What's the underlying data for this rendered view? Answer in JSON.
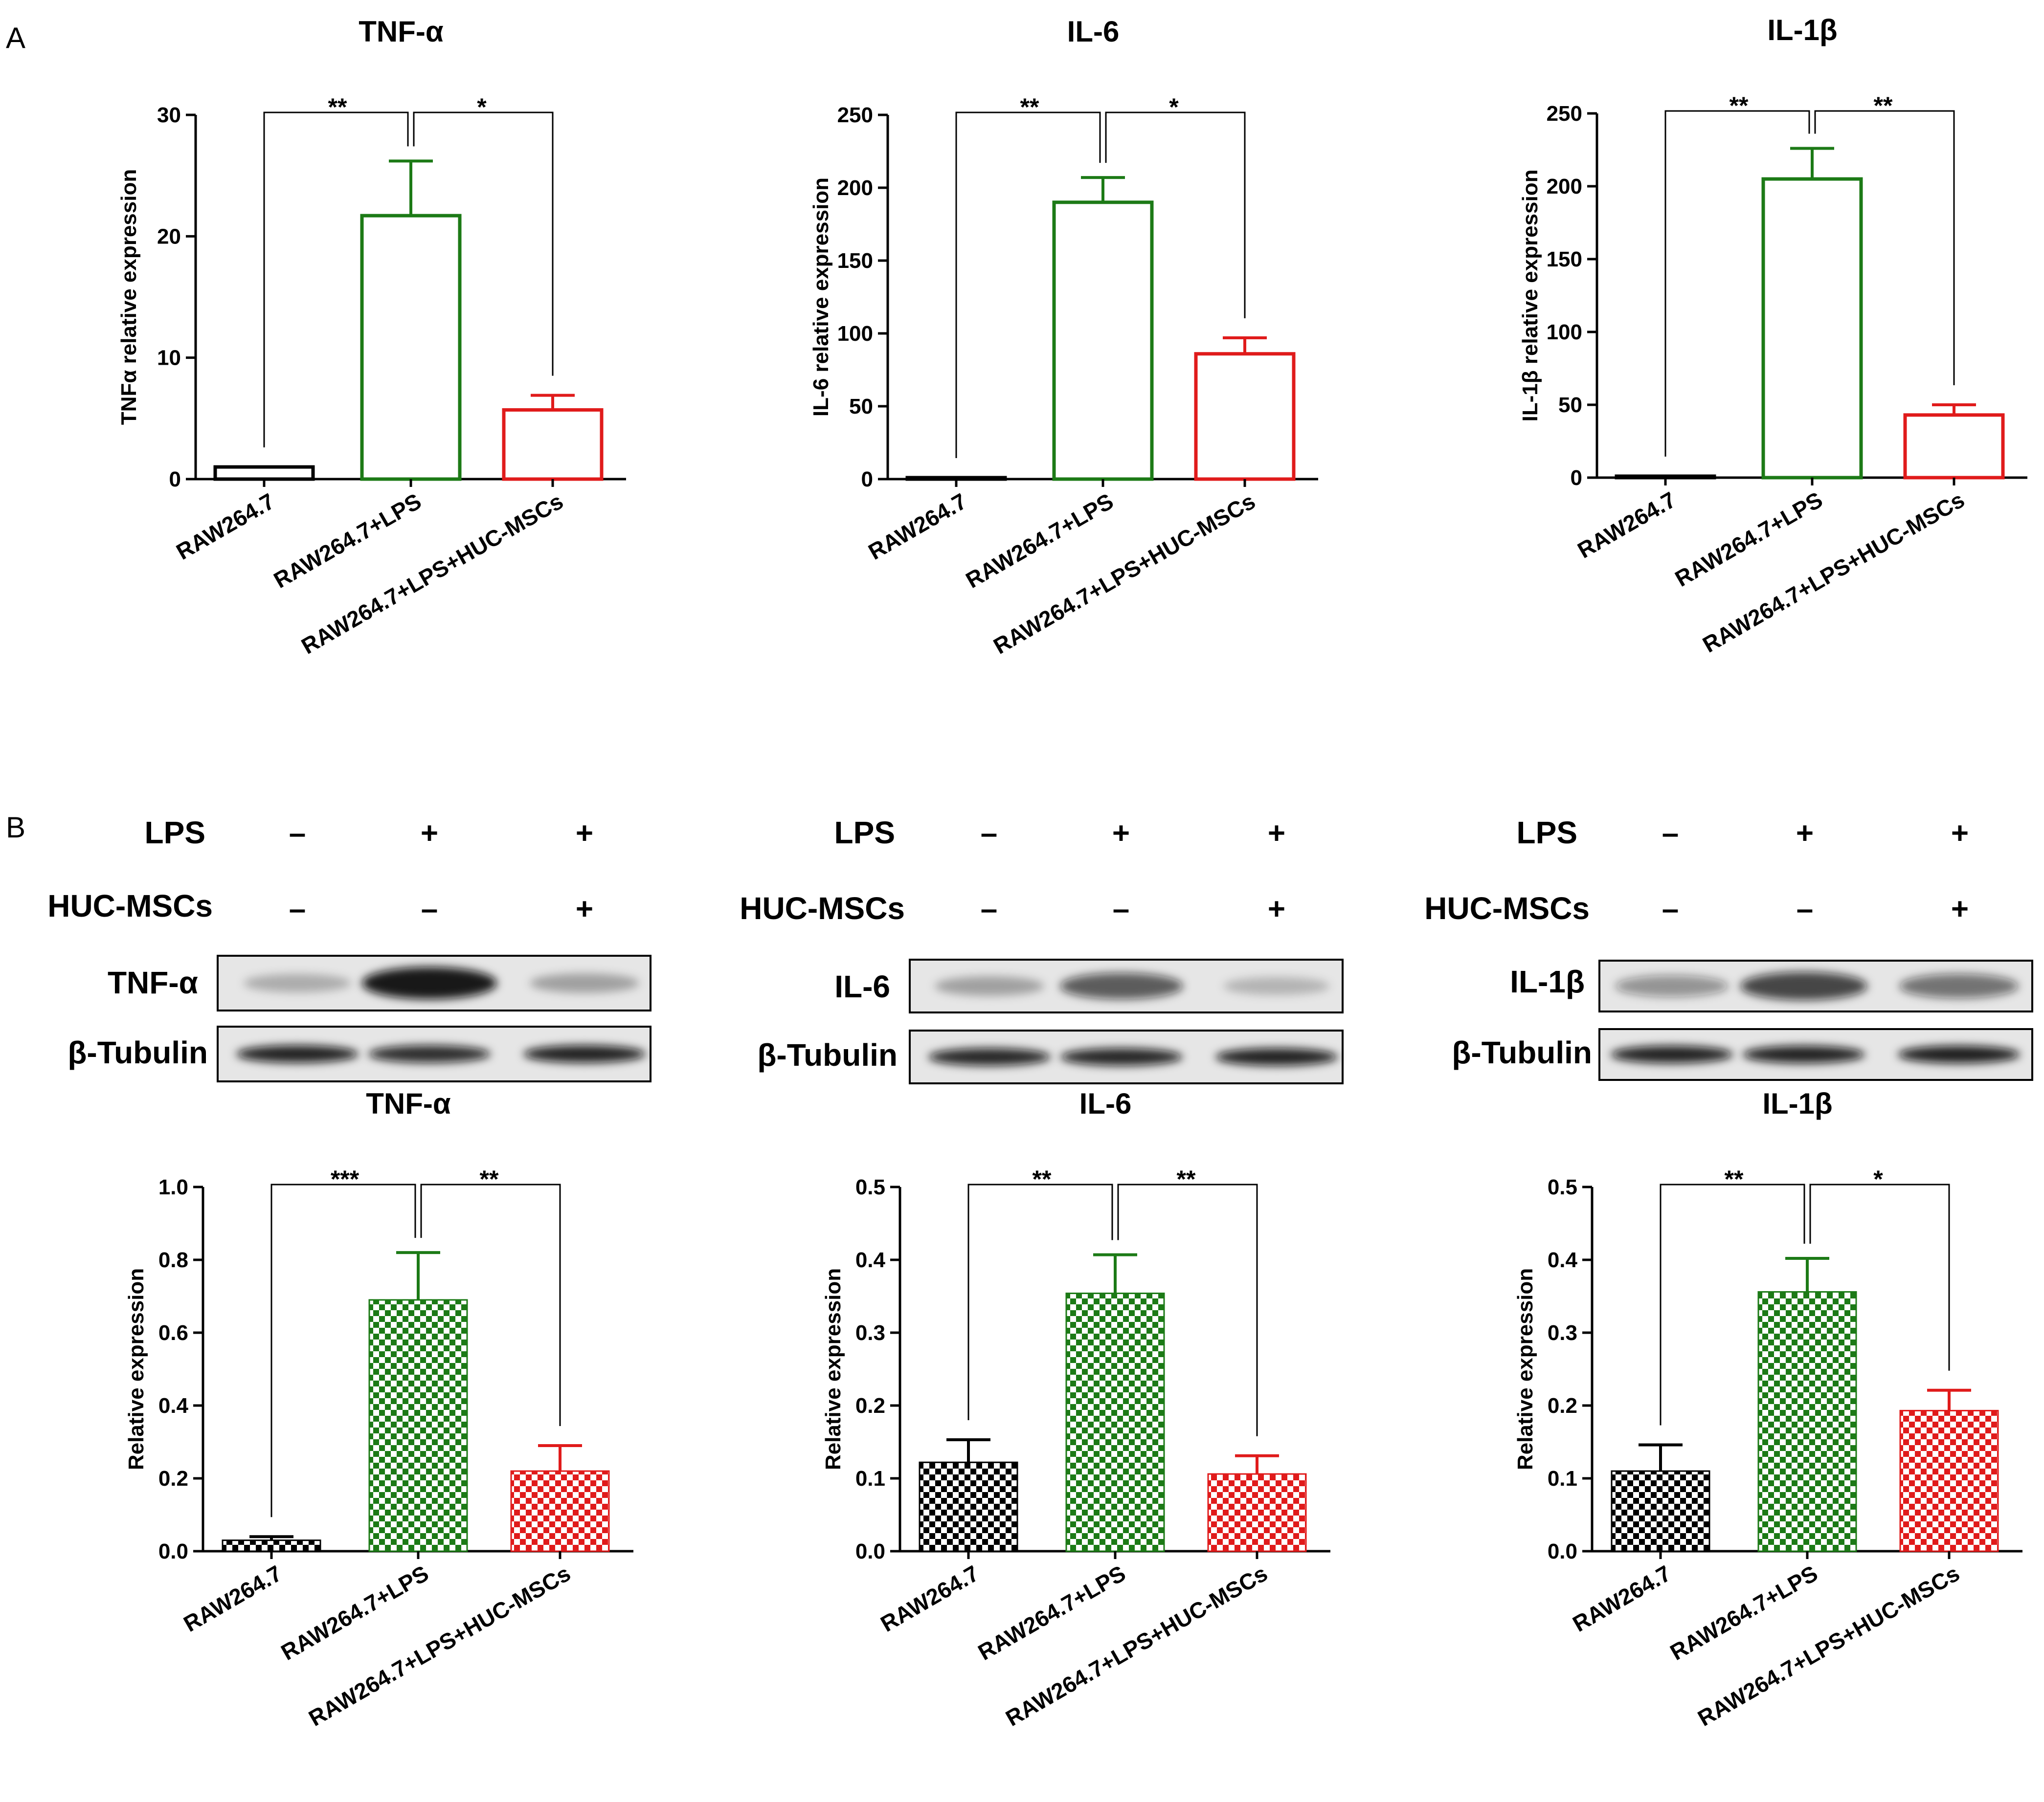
{
  "figure": {
    "panels": [
      "A",
      "B"
    ]
  },
  "colors": {
    "raw": "#000000",
    "lps": "#1c7a16",
    "huc": "#e01b1b",
    "axis": "#000000",
    "band_bg": "#e6e6e6",
    "band": "#111111"
  },
  "western_blot": {
    "row_labels": {
      "lps": "LPS",
      "huc": "HUC-MSCs"
    },
    "lps_signs": [
      "–",
      "+",
      "+"
    ],
    "huc_signs": [
      "–",
      "–",
      "+"
    ],
    "loading_label": "β-Tubulin",
    "targets": [
      "TNF-α",
      "IL-6",
      "IL-1β"
    ],
    "target_intensity": [
      [
        0.25,
        0.95,
        0.3
      ],
      [
        0.3,
        0.65,
        0.22
      ],
      [
        0.4,
        0.75,
        0.55
      ]
    ],
    "tubulin_intensity": [
      [
        0.9,
        0.85,
        0.9
      ],
      [
        0.88,
        0.88,
        0.9
      ],
      [
        0.9,
        0.9,
        0.92
      ]
    ]
  },
  "chart_data": [
    {
      "type": "bar",
      "panel": "A",
      "title": "TNF-α",
      "ylabel": "TNFα relative expression",
      "categories": [
        "RAW264.7",
        "RAW264.7+LPS",
        "RAW264.7+LPS+HUC-MSCs"
      ],
      "values": [
        1,
        21.7,
        5.7
      ],
      "errors": [
        0,
        4.5,
        1.2
      ],
      "ylim": [
        0,
        30
      ],
      "yticks": [
        0,
        10,
        20,
        30
      ],
      "ytick_labels": [
        "0",
        "10",
        "20",
        "30"
      ],
      "fill": "hollow",
      "significance": [
        "**",
        "*"
      ]
    },
    {
      "type": "bar",
      "panel": "A",
      "title": "IL-6",
      "ylabel": "IL-6 relative expression",
      "categories": [
        "RAW264.7",
        "RAW264.7+LPS",
        "RAW264.7+LPS+HUC-MSCs"
      ],
      "values": [
        1,
        190,
        86
      ],
      "errors": [
        0,
        17,
        11
      ],
      "ylim": [
        0,
        250
      ],
      "yticks": [
        0,
        50,
        100,
        150,
        200,
        250
      ],
      "ytick_labels": [
        "0",
        "50",
        "100",
        "150",
        "200",
        "250"
      ],
      "fill": "hollow",
      "significance": [
        "**",
        "*"
      ]
    },
    {
      "type": "bar",
      "panel": "A",
      "title": "IL-1β",
      "ylabel": "IL-1β relative expression",
      "categories": [
        "RAW264.7",
        "RAW264.7+LPS",
        "RAW264.7+LPS+HUC-MSCs"
      ],
      "values": [
        1,
        205,
        43
      ],
      "errors": [
        0,
        21,
        7
      ],
      "ylim": [
        0,
        250
      ],
      "yticks": [
        0,
        50,
        100,
        150,
        200,
        250
      ],
      "ytick_labels": [
        "0",
        "50",
        "100",
        "150",
        "200",
        "250"
      ],
      "fill": "hollow",
      "significance": [
        "**",
        "**"
      ]
    },
    {
      "type": "bar",
      "panel": "B",
      "title": "TNF-α",
      "ylabel": "Relative expression",
      "categories": [
        "RAW264.7",
        "RAW264.7+LPS",
        "RAW264.7+LPS+HUC-MSCs"
      ],
      "values": [
        0.03,
        0.69,
        0.22
      ],
      "errors": [
        0.01,
        0.13,
        0.07
      ],
      "ylim": [
        0,
        1.0
      ],
      "yticks": [
        0,
        0.2,
        0.4,
        0.6,
        0.8,
        1.0
      ],
      "ytick_labels": [
        "0.0",
        "0.2",
        "0.4",
        "0.6",
        "0.8",
        "1.0"
      ],
      "fill": "checkered",
      "significance": [
        "***",
        "**"
      ]
    },
    {
      "type": "bar",
      "panel": "B",
      "title": "IL-6",
      "ylabel": "Relative expression",
      "categories": [
        "RAW264.7",
        "RAW264.7+LPS",
        "RAW264.7+LPS+HUC-MSCs"
      ],
      "values": [
        0.122,
        0.354,
        0.106
      ],
      "errors": [
        0.031,
        0.053,
        0.025
      ],
      "ylim": [
        0,
        0.5
      ],
      "yticks": [
        0,
        0.1,
        0.2,
        0.3,
        0.4,
        0.5
      ],
      "ytick_labels": [
        "0.0",
        "0.1",
        "0.2",
        "0.3",
        "0.4",
        "0.5"
      ],
      "fill": "checkered",
      "significance": [
        "**",
        "**"
      ]
    },
    {
      "type": "bar",
      "panel": "B",
      "title": "IL-1β",
      "ylabel": "Relative expression",
      "categories": [
        "RAW264.7",
        "RAW264.7+LPS",
        "RAW264.7+LPS+HUC-MSCs"
      ],
      "values": [
        0.11,
        0.356,
        0.193
      ],
      "errors": [
        0.036,
        0.046,
        0.028
      ],
      "ylim": [
        0,
        0.5
      ],
      "yticks": [
        0,
        0.1,
        0.2,
        0.3,
        0.4,
        0.5
      ],
      "ytick_labels": [
        "0.0",
        "0.1",
        "0.2",
        "0.3",
        "0.4",
        "0.5"
      ],
      "fill": "checkered",
      "significance": [
        "**",
        "*"
      ]
    }
  ]
}
